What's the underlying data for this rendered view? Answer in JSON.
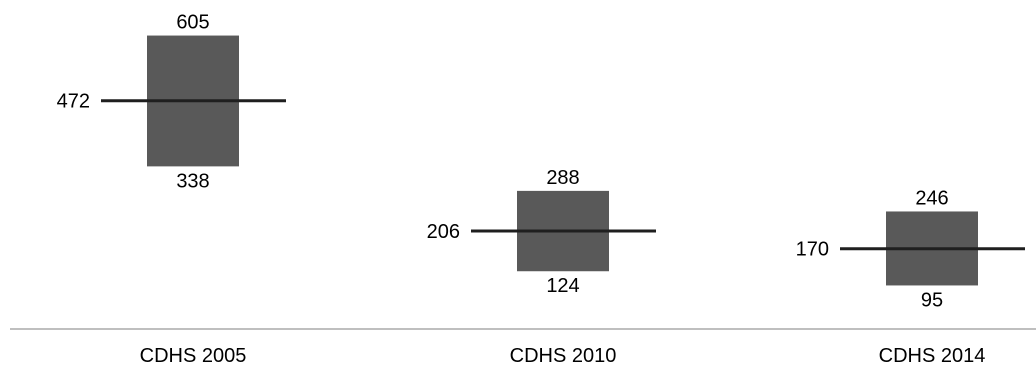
{
  "chart_data": {
    "type": "range",
    "categories": [
      "CDHS 2005",
      "CDHS 2010",
      "CDHS 2014"
    ],
    "series": [
      {
        "values": [
          472,
          206,
          170
        ]
      },
      {
        "values": [
          605,
          288,
          246
        ]
      },
      {
        "values": [
          338,
          124,
          95
        ]
      }
    ],
    "title": "",
    "xlabel": "",
    "ylabel": "",
    "ylim": [
      0,
      700
    ],
    "grid": false,
    "legend": "none",
    "colors": {
      "box": "#595959",
      "line": "#1f1f1f",
      "axis": "#7f7f7f",
      "text": "#000000"
    }
  }
}
